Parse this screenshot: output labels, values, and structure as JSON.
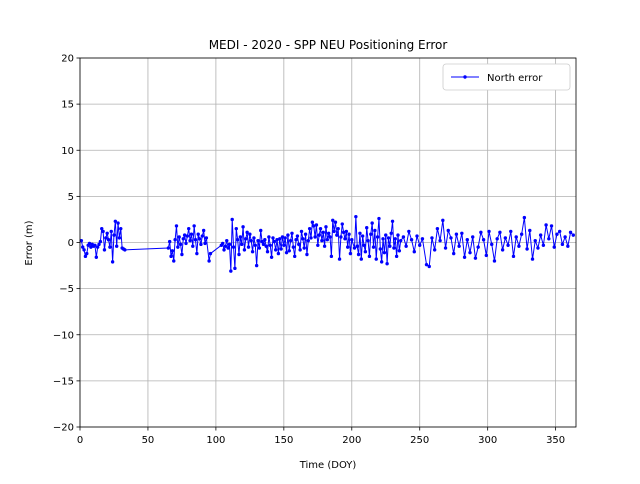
{
  "chart_data": {
    "type": "line",
    "title": "MEDI - 2020 - SPP NEU Positioning Error",
    "x_label": "Time (DOY)",
    "y_label": "Error (m)",
    "x": [
      1,
      2,
      3,
      4,
      5,
      6,
      7,
      8,
      9,
      10,
      11,
      12,
      13,
      14,
      15,
      16,
      17,
      18,
      19,
      20,
      21,
      22,
      23,
      24,
      25,
      26,
      27,
      28,
      29,
      30,
      31,
      32,
      33,
      65,
      66,
      67,
      68,
      69,
      70,
      71,
      72,
      73,
      74,
      75,
      76,
      77,
      78,
      79,
      80,
      81,
      82,
      83,
      84,
      85,
      86,
      87,
      88,
      89,
      90,
      91,
      92,
      93,
      95,
      96,
      104,
      105,
      106,
      107,
      108,
      109,
      110,
      111,
      112,
      113,
      114,
      115,
      116,
      117,
      118,
      119,
      120,
      121,
      122,
      123,
      124,
      125,
      126,
      127,
      128,
      129,
      130,
      131,
      132,
      133,
      134,
      135,
      136,
      137,
      138,
      139,
      140,
      141,
      142,
      143,
      144,
      145,
      146,
      147,
      148,
      149,
      150,
      151,
      152,
      153,
      154,
      155,
      156,
      157,
      158,
      159,
      160,
      161,
      162,
      163,
      164,
      165,
      166,
      167,
      168,
      169,
      170,
      171,
      172,
      173,
      174,
      175,
      176,
      177,
      178,
      179,
      180,
      181,
      182,
      183,
      184,
      185,
      186,
      187,
      188,
      189,
      190,
      191,
      192,
      193,
      194,
      195,
      196,
      197,
      198,
      199,
      200,
      202,
      203,
      204,
      205,
      206,
      207,
      208,
      209,
      210,
      211,
      212,
      213,
      214,
      215,
      216,
      217,
      218,
      219,
      220,
      221,
      222,
      223,
      224,
      225,
      226,
      227,
      228,
      229,
      230,
      231,
      232,
      233,
      234,
      235,
      236,
      238,
      240,
      242,
      244,
      246,
      248,
      250,
      252,
      255,
      257,
      259,
      261,
      263,
      265,
      267,
      269,
      271,
      273,
      275,
      277,
      279,
      281,
      283,
      285,
      287,
      289,
      291,
      293,
      295,
      297,
      299,
      301,
      303,
      305,
      307,
      309,
      311,
      313,
      315,
      317,
      319,
      321,
      323,
      325,
      327,
      329,
      331,
      333,
      335,
      337,
      339,
      341,
      343,
      345,
      347,
      349,
      351,
      353,
      355,
      357,
      359,
      361,
      363
    ],
    "series": [
      {
        "name": "North error",
        "color": "#0000ff",
        "values": [
          0.2,
          -0.5,
          -0.8,
          -1.5,
          -1.2,
          -0.3,
          -0.1,
          -0.5,
          -0.2,
          -0.4,
          -0.3,
          -1.6,
          -0.5,
          -0.2,
          0.1,
          1.5,
          1.2,
          -0.8,
          0.5,
          1.0,
          0.3,
          -0.5,
          1.2,
          -2.1,
          0.8,
          2.3,
          -0.4,
          2.1,
          0.5,
          1.5,
          -0.6,
          -0.7,
          -0.8,
          -0.6,
          0.1,
          -1.5,
          -0.9,
          -2.0,
          0.3,
          1.8,
          -0.5,
          0.6,
          -0.2,
          -1.3,
          0.4,
          0.8,
          -0.1,
          0.7,
          1.5,
          0.2,
          0.9,
          -0.4,
          1.8,
          0.3,
          -1.2,
          0.9,
          0.4,
          -0.2,
          0.7,
          1.3,
          -0.1,
          0.5,
          -2.0,
          -1.2,
          -0.3,
          -0.1,
          -0.8,
          -0.4,
          0.2,
          -0.6,
          -0.2,
          -3.1,
          2.5,
          -0.5,
          -2.8,
          1.5,
          0.3,
          -1.3,
          0.6,
          -0.2,
          1.7,
          -0.8,
          0.4,
          1.1,
          -0.5,
          0.9,
          0.2,
          -1.0,
          0.5,
          -0.3,
          -2.5,
          0.2,
          -0.6,
          1.3,
          0.1,
          -0.2,
          0.3,
          -0.4,
          -1.0,
          0.6,
          -0.3,
          -1.6,
          0.5,
          0.1,
          -0.8,
          0.3,
          -1.2,
          0.4,
          -0.7,
          0.6,
          -0.3,
          0.5,
          -1.1,
          0.8,
          -0.9,
          0.2,
          1.0,
          -0.5,
          -1.5,
          0.3,
          0.7,
          -0.2,
          -0.8,
          1.2,
          0.4,
          -0.6,
          0.9,
          -1.3,
          0.2,
          1.5,
          0.5,
          2.2,
          1.8,
          0.6,
          1.9,
          -0.3,
          0.8,
          1.5,
          0.2,
          1.1,
          -0.4,
          1.7,
          0.3,
          1.0,
          0.6,
          -1.5,
          2.4,
          1.2,
          2.2,
          0.8,
          1.5,
          -1.8,
          0.6,
          2.0,
          1.1,
          0.4,
          1.2,
          -0.5,
          0.9,
          -1.2,
          0.3,
          -0.6,
          2.8,
          -0.4,
          -1.3,
          1.0,
          -1.8,
          0.7,
          -0.3,
          -1.0,
          1.6,
          0.2,
          -1.5,
          0.9,
          2.1,
          -0.5,
          1.3,
          -1.8,
          0.6,
          2.6,
          -0.7,
          -2.1,
          0.4,
          -1.1,
          0.8,
          -2.3,
          0.5,
          -0.4,
          1.0,
          2.3,
          -0.6,
          0.4,
          -1.5,
          0.8,
          -0.9,
          0.2,
          0.6,
          -0.4,
          1.2,
          0.3,
          -1.0,
          0.7,
          -0.3,
          0.4,
          -2.4,
          -2.6,
          0.5,
          -0.8,
          1.5,
          0.2,
          2.4,
          -0.6,
          1.3,
          0.5,
          -1.2,
          0.9,
          -0.4,
          1.0,
          -1.6,
          0.3,
          -1.1,
          0.6,
          -1.7,
          -0.5,
          1.1,
          0.3,
          -1.4,
          1.2,
          -0.2,
          -2.0,
          0.4,
          1.1,
          -0.8,
          0.5,
          -0.3,
          1.2,
          -1.5,
          0.6,
          -0.4,
          0.9,
          2.7,
          -0.7,
          1.3,
          -1.8,
          0.2,
          -0.6,
          0.8,
          -0.3,
          1.9,
          0.4,
          1.8,
          -0.5,
          0.9,
          1.2,
          -0.2,
          0.6,
          -0.4,
          1.1,
          0.8
        ]
      }
    ],
    "xlim": [
      0,
      365
    ],
    "xticks": [
      0,
      50,
      100,
      150,
      200,
      250,
      300,
      350
    ],
    "ylim": [
      -20,
      20
    ],
    "yticks": [
      {
        "value": -20,
        "label": "−20"
      },
      {
        "value": -15,
        "label": "−15"
      },
      {
        "value": -10,
        "label": "−10"
      },
      {
        "value": -5,
        "label": "−5"
      },
      0,
      5,
      10,
      15,
      20
    ],
    "grid": true,
    "legend": "upper right"
  }
}
